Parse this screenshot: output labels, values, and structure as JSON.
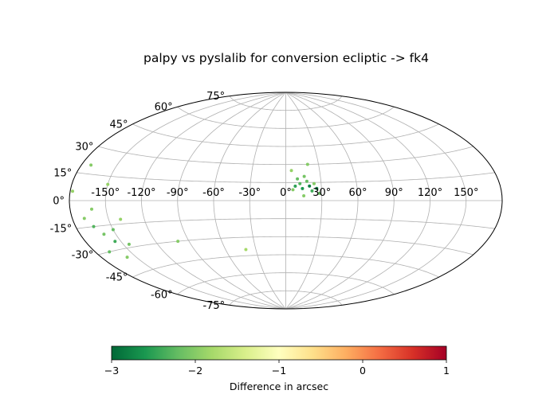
{
  "chart_data": {
    "type": "scatter",
    "title": "palpy vs pyslalib for conversion ecliptic -> fk4",
    "projection": "aitoff",
    "grid": true,
    "longitude_ticks": [
      "-150°",
      "-120°",
      "-90°",
      "-60°",
      "-30°",
      "0°",
      "30°",
      "60°",
      "90°",
      "120°",
      "150°"
    ],
    "longitude_tick_values": [
      -150,
      -120,
      -90,
      -60,
      -30,
      0,
      30,
      60,
      90,
      120,
      150
    ],
    "latitude_ticks": [
      "-75°",
      "-60°",
      "-45°",
      "-30°",
      "-15°",
      "0°",
      "15°",
      "30°",
      "45°",
      "60°",
      "75°"
    ],
    "latitude_tick_values": [
      -75,
      -60,
      -45,
      -30,
      -15,
      0,
      15,
      30,
      45,
      60,
      75
    ],
    "colorbar": {
      "label": "Difference in arcsec",
      "range": [
        -3,
        1
      ],
      "ticks": [
        "−3",
        "−2",
        "−1",
        "0",
        "1"
      ],
      "tick_values": [
        -3,
        -2,
        -1,
        0,
        1
      ],
      "colormap": [
        "#006837",
        "#1a9850",
        "#66bd63",
        "#a6d96a",
        "#d9ef8b",
        "#ffffbf",
        "#fee08b",
        "#fdae61",
        "#f46d43",
        "#d73027",
        "#a50026"
      ]
    },
    "points": [
      [
        8,
        12,
        -2.5
      ],
      [
        12,
        14,
        -2.3
      ],
      [
        14,
        10,
        -2.6
      ],
      [
        18,
        16,
        -2.2
      ],
      [
        20,
        12,
        -2.8
      ],
      [
        22,
        8,
        -2.4
      ],
      [
        24,
        14,
        -2.0
      ],
      [
        26,
        10,
        -2.7
      ],
      [
        16,
        20,
        -2.1
      ],
      [
        10,
        18,
        -2.2
      ],
      [
        6,
        9,
        -2.0
      ],
      [
        28,
        6,
        -2.2
      ],
      [
        15,
        4,
        -2.0
      ],
      [
        20,
        30,
        -2.0
      ],
      [
        5,
        25,
        -1.9
      ],
      [
        -165,
        -15,
        -2.3
      ],
      [
        -160,
        -20,
        -2.1
      ],
      [
        -155,
        -25,
        -2.4
      ],
      [
        -170,
        -10,
        -2.0
      ],
      [
        -150,
        -18,
        -2.2
      ],
      [
        -145,
        -28,
        -2.1
      ],
      [
        -158,
        -35,
        -2.0
      ],
      [
        -168,
        -30,
        -2.2
      ],
      [
        -140,
        -12,
        -1.9
      ],
      [
        -162,
        -5,
        -2.0
      ],
      [
        -172,
        20,
        -2.0
      ],
      [
        -178,
        5,
        -1.9
      ],
      [
        -150,
        10,
        -1.9
      ],
      [
        -100,
        -30,
        -2.0
      ],
      [
        -40,
        -40,
        -1.8
      ]
    ]
  }
}
